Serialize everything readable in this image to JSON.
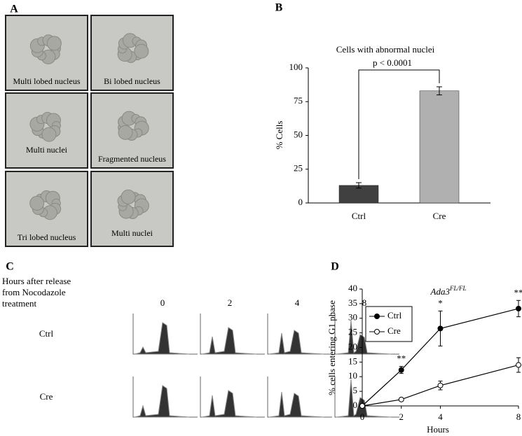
{
  "panel_a": {
    "label": "A",
    "captions": [
      "Multi lobed nucleus",
      "Bi lobed nucleus",
      "Multi nuclei",
      "Fragmented nucleus",
      "Tri lobed nucleus",
      "Multi nuclei"
    ]
  },
  "panel_c": {
    "label": "C",
    "header": [
      "Hours after release",
      "from    Nocodazole",
      "treatment"
    ],
    "columns": [
      "0",
      "2",
      "4",
      "8"
    ],
    "rows": [
      "Ctrl",
      "Cre"
    ]
  },
  "chart_data": [
    {
      "type": "bar",
      "panel": "B",
      "title": "Cells with abnormal nuclei",
      "ylabel": "% Cells",
      "categories": [
        "Ctrl",
        "Cre"
      ],
      "values": [
        13,
        83
      ],
      "errors": [
        2,
        3
      ],
      "colors": [
        "#404040",
        "#b0b0b0"
      ],
      "ylim": [
        0,
        100
      ],
      "yticks": [
        0,
        25,
        50,
        75,
        100
      ],
      "annotation": "p < 0.0001"
    },
    {
      "type": "line",
      "panel": "D",
      "title": "Ada3",
      "title_sup": "FL/FL",
      "xlabel": "Hours",
      "ylabel": "% cells entering G1 phase",
      "x": [
        0,
        2,
        4,
        8
      ],
      "xlim": [
        0,
        8
      ],
      "xticks": [
        0,
        2,
        4,
        8
      ],
      "ylim": [
        0,
        40
      ],
      "yticks": [
        0,
        5,
        10,
        15,
        20,
        25,
        30,
        35,
        40
      ],
      "series": [
        {
          "name": "Ctrl",
          "color": "#000000",
          "fill": "#000000",
          "values": [
            0,
            12.3,
            26.5,
            33.3
          ],
          "errors": [
            0,
            1.2,
            6,
            2.8
          ]
        },
        {
          "name": "Cre",
          "color": "#000000",
          "fill": "#ffffff",
          "values": [
            0,
            2.2,
            7,
            14
          ],
          "errors": [
            0,
            0.5,
            1.5,
            2.5
          ]
        }
      ],
      "significance": [
        "**",
        "*",
        "**"
      ],
      "significance_x": [
        2,
        4,
        8
      ],
      "legend": "top-left"
    }
  ]
}
